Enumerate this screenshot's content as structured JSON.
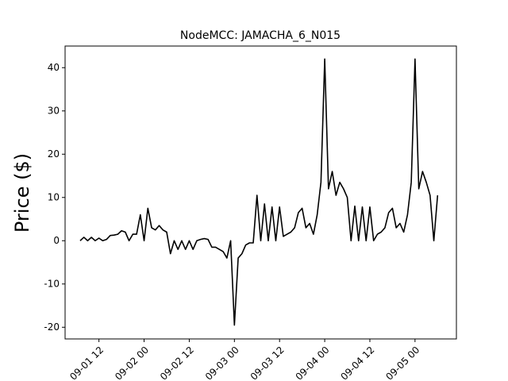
{
  "chart_data": {
    "type": "line",
    "title": "NodeMCC: JAMACHA_6_N015",
    "y_label": "Price ($)",
    "x": [
      "09-01 07",
      "09-01 08",
      "09-01 09",
      "09-01 10",
      "09-01 11",
      "09-01 12",
      "09-01 13",
      "09-01 14",
      "09-01 15",
      "09-01 16",
      "09-01 17",
      "09-01 18",
      "09-01 19",
      "09-01 20",
      "09-01 21",
      "09-01 22",
      "09-01 23",
      "09-02 00",
      "09-02 01",
      "09-02 02",
      "09-02 03",
      "09-02 04",
      "09-02 05",
      "09-02 06",
      "09-02 07",
      "09-02 08",
      "09-02 09",
      "09-02 10",
      "09-02 11",
      "09-02 12",
      "09-02 13",
      "09-02 14",
      "09-02 15",
      "09-02 16",
      "09-02 17",
      "09-02 18",
      "09-02 19",
      "09-02 20",
      "09-02 21",
      "09-02 22",
      "09-02 23",
      "09-03 00",
      "09-03 01",
      "09-03 02",
      "09-03 03",
      "09-03 04",
      "09-03 05",
      "09-03 06",
      "09-03 07",
      "09-03 08",
      "09-03 09",
      "09-03 10",
      "09-03 11",
      "09-03 12",
      "09-03 13",
      "09-03 14",
      "09-03 15",
      "09-03 16",
      "09-03 17",
      "09-03 18",
      "09-03 19",
      "09-03 20",
      "09-03 21",
      "09-03 22",
      "09-03 23",
      "09-04 00",
      "09-04 01",
      "09-04 02",
      "09-04 03",
      "09-04 04",
      "09-04 05",
      "09-04 06",
      "09-04 07",
      "09-04 08",
      "09-04 09",
      "09-04 10",
      "09-04 11",
      "09-04 12",
      "09-04 13",
      "09-04 14",
      "09-04 15",
      "09-04 16",
      "09-04 17",
      "09-04 18",
      "09-04 19",
      "09-04 20",
      "09-04 21",
      "09-04 22",
      "09-04 23",
      "09-05 00",
      "09-05 01",
      "09-05 02",
      "09-05 03",
      "09-05 04",
      "09-05 05",
      "09-05 06"
    ],
    "series": [
      {
        "color": "#000000",
        "values": [
          0,
          0.8,
          0,
          0.8,
          0,
          0.6,
          0,
          0.3,
          1.2,
          1.3,
          1.5,
          2.3,
          2,
          0,
          1.5,
          1.5,
          6,
          0,
          7.5,
          3,
          2.5,
          3.5,
          2.5,
          2,
          -3,
          0,
          -2,
          0,
          -2,
          0,
          -2,
          0,
          0.3,
          0.5,
          0.3,
          -1.5,
          -1.5,
          -2,
          -2.5,
          -4,
          0,
          -19.5,
          -4,
          -3,
          -1,
          -0.5,
          -0.5,
          10.5,
          0,
          8.5,
          0,
          7.8,
          0,
          7.8,
          1,
          1.5,
          2,
          3,
          6.5,
          7.5,
          3,
          4,
          1.5,
          6,
          13.5,
          42,
          12,
          16,
          10.5,
          13.5,
          12,
          10,
          0,
          8,
          0,
          7.8,
          0,
          7.8,
          0,
          1.5,
          2,
          3,
          6.5,
          7.5,
          3,
          4,
          2,
          6,
          13.5,
          42,
          12,
          16,
          13.5,
          10.5,
          0,
          10.5
        ]
      }
    ],
    "xlim": [
      "09-01 03",
      "09-05 11"
    ],
    "xticks": [
      "09-01 12",
      "09-02 00",
      "09-02 12",
      "09-03 00",
      "09-03 12",
      "09-04 00",
      "09-04 12",
      "09-05 00"
    ],
    "ylim": [
      -22.7,
      45
    ],
    "yticks": [
      -20,
      -10,
      0,
      10,
      20,
      30,
      40
    ]
  }
}
